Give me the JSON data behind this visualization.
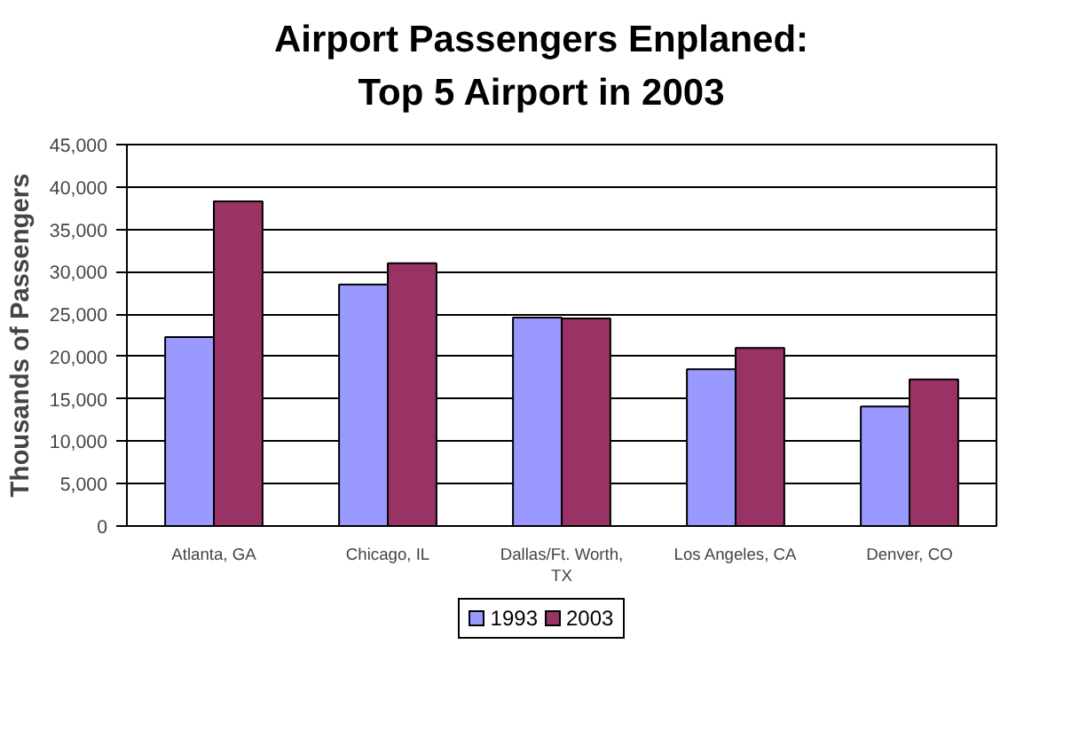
{
  "chart_data": {
    "type": "bar",
    "title": "Airport Passengers Enplaned:\nTop 5 Airport in 2003",
    "ylabel": "Thousands of Passengers",
    "categories": [
      "Atlanta, GA",
      "Chicago, IL",
      "Dallas/Ft. Worth, TX",
      "Los Angeles, CA",
      "Denver, CO"
    ],
    "series": [
      {
        "name": "1993",
        "color": "#9999ff",
        "values": [
          22300,
          28500,
          24600,
          18500,
          14100
        ]
      },
      {
        "name": "2003",
        "color": "#993366",
        "values": [
          38300,
          31000,
          24500,
          21000,
          17300
        ]
      }
    ],
    "ylim": [
      0,
      45000
    ],
    "yticks": [
      {
        "value": 0,
        "label": "0"
      },
      {
        "value": 5000,
        "label": "5,000"
      },
      {
        "value": 10000,
        "label": "10,000"
      },
      {
        "value": 15000,
        "label": "15,000"
      },
      {
        "value": 20000,
        "label": "20,000"
      },
      {
        "value": 25000,
        "label": "25,000"
      },
      {
        "value": 30000,
        "label": "30,000"
      },
      {
        "value": 35000,
        "label": "35,000"
      },
      {
        "value": 40000,
        "label": "40,000"
      },
      {
        "value": 45000,
        "label": "45,000"
      }
    ],
    "grid": "y",
    "legend": "bottom"
  }
}
